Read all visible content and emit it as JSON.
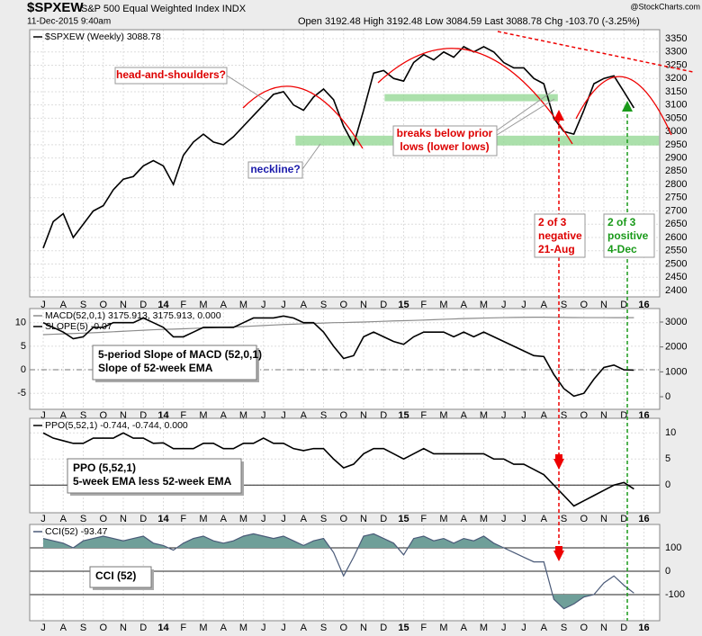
{
  "header": {
    "symbol": "$SPXEW",
    "name": "S&P 500 Equal Weighted Index INDX",
    "date": "11-Dec-2015 9:40am",
    "quote": "Open 3192.48 High 3192.48 Low 3084.59 Last 3088.78 Chg -103.70 (-3.25%)",
    "source": "@StockCharts.com"
  },
  "annotations": {
    "head_and_shoulders": "head-and-shoulders?",
    "neckline": "neckline?",
    "breaks": [
      "breaks below prior",
      "lows (lower lows)"
    ],
    "negative": [
      "2 of 3",
      "negative",
      "21-Aug"
    ],
    "positive": [
      "2 of 3",
      "positive",
      "4-Dec"
    ]
  },
  "chart_data": [
    {
      "type": "line",
      "categories": [
        "J",
        null,
        "A",
        null,
        "S",
        null,
        "O",
        null,
        "N",
        null,
        "D",
        null,
        "14",
        null,
        "F",
        null,
        "M",
        null,
        "A",
        null,
        "M",
        null,
        "J",
        null,
        "J",
        null,
        "A",
        null,
        "S",
        null,
        "O",
        null,
        "N",
        null,
        "D",
        null,
        "15",
        null,
        "F",
        null,
        "M",
        null,
        "A",
        null,
        "M",
        null,
        "J",
        null,
        "J",
        null,
        "A",
        null,
        "S",
        null,
        "O",
        null,
        "N",
        null,
        "D",
        null,
        "16",
        null
      ],
      "series": [
        {
          "name": "$SPXEW (Weekly) 3088.78",
          "color": "#000000",
          "values": [
            2560,
            2660,
            2690,
            2600,
            2650,
            2700,
            2720,
            2780,
            2820,
            2830,
            2870,
            2890,
            2870,
            2800,
            2910,
            2960,
            2990,
            2960,
            2950,
            2980,
            3020,
            3060,
            3100,
            3140,
            3150,
            3100,
            3080,
            3130,
            3160,
            3120,
            3020,
            2950,
            3080,
            3220,
            3230,
            3200,
            3190,
            3260,
            3290,
            3270,
            3300,
            3280,
            3320,
            3300,
            3320,
            3300,
            3260,
            3240,
            3240,
            3200,
            3180,
            3050,
            3000,
            2990,
            3080,
            3180,
            3200,
            3210,
            3150,
            3088.78,
            null,
            null
          ]
        }
      ],
      "ylim": [
        2376,
        3384
      ],
      "yticks": [
        2400,
        2450,
        2500,
        2550,
        2600,
        2650,
        2700,
        2750,
        2800,
        2850,
        2900,
        2950,
        3000,
        3050,
        3100,
        3150,
        3200,
        3250,
        3300,
        3350
      ],
      "grid": true,
      "bands": [
        {
          "range": [
            3114,
            3141
          ],
          "x": [
            34.1,
            51.4
          ]
        },
        {
          "range": [
            2947,
            2984
          ],
          "x": [
            25.2,
            61.5
          ]
        }
      ],
      "band_color": "#8fd68f"
    },
    {
      "type": "line",
      "series": [
        {
          "name": "MACD(52,0,1) 3175.913, 3175.913, 0.000",
          "color": "#8c8c8c",
          "axis": "y2",
          "values": [
            2495,
            2510,
            2525,
            2540,
            2555,
            2570,
            2590,
            2610,
            2630,
            2650,
            2670,
            2690,
            2705,
            2715,
            2730,
            2745,
            2760,
            2775,
            2790,
            2805,
            2820,
            2840,
            2860,
            2880,
            2900,
            2915,
            2930,
            2945,
            2960,
            2975,
            2980,
            2990,
            3000,
            3015,
            3030,
            3045,
            3055,
            3065,
            3080,
            3095,
            3110,
            3125,
            3140,
            3150,
            3160,
            3170,
            3178,
            3185,
            3190,
            3195,
            3195,
            3190,
            3185,
            3180,
            3178,
            3178,
            3178,
            3177,
            3177,
            3175.913,
            null,
            null
          ]
        },
        {
          "name": "SLOPE(5) -0.07",
          "color": "#000000",
          "values": [
            10,
            9,
            8,
            6.6,
            7,
            9,
            9,
            10,
            10,
            10,
            11,
            10,
            9,
            7,
            7,
            8,
            9,
            9,
            9,
            9,
            10,
            11,
            11,
            11,
            11.4,
            11,
            10,
            10,
            8,
            5,
            2.4,
            3,
            7,
            8,
            7,
            6,
            5.4,
            7,
            8,
            8,
            8,
            7,
            8,
            7,
            8,
            7,
            6,
            5,
            4,
            3,
            2.8,
            -1,
            -4,
            -5.6,
            -5,
            -2,
            0.5,
            1,
            0,
            -0.07,
            null,
            null
          ]
        }
      ],
      "ylim": [
        -8.4,
        13
      ],
      "yticks": [
        -5,
        0,
        5,
        10
      ],
      "y2lim": [
        -505,
        3542
      ],
      "y2ticks": [
        0,
        1000,
        2000,
        3000
      ],
      "grid": true,
      "reference_lines": [
        0
      ],
      "note": [
        "5-period Slope of MACD (52,0,1)",
        "Slope of 52-week EMA"
      ]
    },
    {
      "type": "line",
      "series": [
        {
          "name": "PPO(5,52,1) -0.744, -0.744, 0.000",
          "color": "#000000",
          "values": [
            10,
            9,
            8.5,
            8,
            8,
            9,
            9,
            9,
            10,
            9,
            9,
            8,
            8.1,
            7,
            7,
            7,
            8,
            8,
            7,
            7,
            8,
            8,
            9,
            8,
            8,
            7,
            6.6,
            7,
            7,
            5,
            3.3,
            4,
            6,
            7,
            7,
            6,
            5,
            6,
            7,
            6,
            6,
            6,
            6,
            6,
            6,
            5,
            5,
            4,
            4,
            3,
            2,
            0,
            -2,
            -4,
            -3,
            -2,
            -1,
            0,
            0.5,
            -0.744,
            null,
            null
          ]
        }
      ],
      "ylim": [
        -5.3,
        12.8
      ],
      "yticks": [
        0,
        5,
        10
      ],
      "grid": true,
      "reference_lines": [
        0
      ],
      "note": [
        "PPO (5,52,1)",
        "5-week EMA less 52-week EMA"
      ]
    },
    {
      "type": "line",
      "series": [
        {
          "name": "CCI(52) -93.47",
          "color": "#4a5a78",
          "values": [
            140,
            130,
            120,
            100,
            130,
            140,
            150,
            140,
            130,
            140,
            150,
            120,
            110,
            90,
            120,
            140,
            150,
            130,
            120,
            130,
            150,
            160,
            150,
            140,
            150,
            130,
            110,
            130,
            140,
            80,
            -20,
            60,
            150,
            160,
            140,
            120,
            70,
            140,
            150,
            130,
            140,
            120,
            140,
            130,
            150,
            120,
            100,
            80,
            60,
            40,
            40,
            -120,
            -160,
            -140,
            -110,
            -100,
            -50,
            -20,
            -60,
            -93.47,
            null,
            null
          ]
        }
      ],
      "ylim": [
        -211.5,
        200
      ],
      "yticks": [
        -100,
        0,
        100
      ],
      "grid": true,
      "reference_lines": [
        100,
        0,
        -100
      ],
      "fill_beyond": [
        100,
        -100
      ],
      "fill_color": "#6f9f99",
      "note": [
        "CCI (52)"
      ]
    }
  ]
}
